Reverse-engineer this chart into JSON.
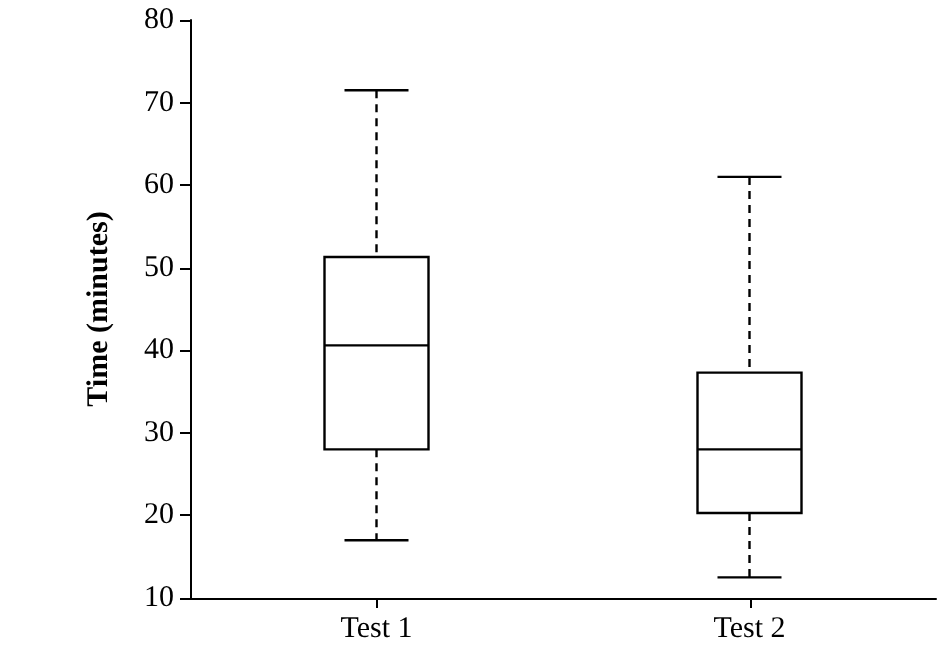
{
  "chart_data": {
    "type": "box",
    "ylabel": "Time (minutes)",
    "categories": [
      "Test 1",
      "Test 2"
    ],
    "boxes": [
      {
        "low": 17,
        "q1": 28,
        "median": 40.6,
        "q3": 51.3,
        "high": 71.5
      },
      {
        "low": 12.5,
        "q1": 20.3,
        "median": 28,
        "q3": 37.3,
        "high": 61
      }
    ],
    "color": "#000000",
    "ylim": [
      10,
      80
    ],
    "yticks": [
      10,
      20,
      30,
      40,
      50,
      60,
      70,
      80
    ]
  }
}
